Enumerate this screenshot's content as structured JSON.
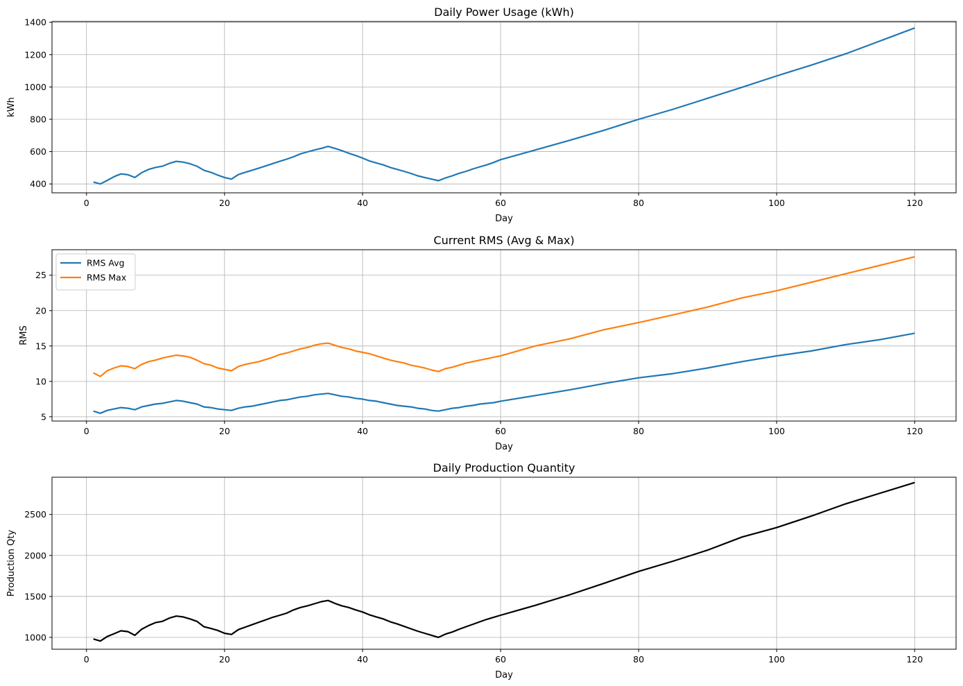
{
  "chart_data": [
    {
      "type": "line",
      "title": "Daily Power Usage (kWh)",
      "xlabel": "Day",
      "ylabel": "kWh",
      "xlim": [
        -5,
        126
      ],
      "ylim": [
        345,
        1405
      ],
      "xticks": [
        0,
        20,
        40,
        60,
        80,
        100,
        120
      ],
      "yticks": [
        400,
        600,
        800,
        1000,
        1200,
        1400
      ],
      "grid": true,
      "legend": null,
      "series": [
        {
          "color": "#1f77b4",
          "x": [
            1,
            2,
            3,
            4,
            5,
            6,
            7,
            8,
            9,
            10,
            11,
            12,
            13,
            14,
            15,
            16,
            17,
            18,
            19,
            20,
            21,
            22,
            23,
            24,
            25,
            26,
            27,
            28,
            29,
            30,
            31,
            32,
            33,
            34,
            35,
            36,
            37,
            38,
            39,
            40,
            41,
            42,
            43,
            44,
            45,
            46,
            47,
            48,
            49,
            50,
            51,
            52,
            53,
            54,
            55,
            56,
            57,
            58,
            59,
            60,
            65,
            70,
            75,
            80,
            85,
            90,
            95,
            100,
            105,
            110,
            115,
            120
          ],
          "values": [
            412,
            400,
            422,
            445,
            462,
            457,
            440,
            470,
            490,
            502,
            510,
            527,
            540,
            535,
            525,
            510,
            485,
            472,
            455,
            440,
            430,
            458,
            472,
            485,
            498,
            512,
            526,
            540,
            553,
            568,
            586,
            598,
            610,
            620,
            632,
            620,
            606,
            590,
            576,
            560,
            542,
            530,
            518,
            502,
            490,
            478,
            465,
            450,
            440,
            430,
            420,
            437,
            450,
            466,
            478,
            493,
            506,
            518,
            533,
            550,
            610,
            670,
            732,
            800,
            862,
            930,
            998,
            1068,
            1135,
            1205,
            1285,
            1365
          ]
        }
      ]
    },
    {
      "type": "line",
      "title": "Current RMS (Avg & Max)",
      "xlabel": "Day",
      "ylabel": "RMS",
      "xlim": [
        -5,
        126
      ],
      "ylim": [
        4.4,
        28.6
      ],
      "xticks": [
        0,
        20,
        40,
        60,
        80,
        100,
        120
      ],
      "yticks": [
        5,
        10,
        15,
        20,
        25
      ],
      "grid": true,
      "legend": "top-left",
      "series": [
        {
          "name": "RMS Avg",
          "color": "#1f77b4",
          "x": [
            1,
            2,
            3,
            4,
            5,
            6,
            7,
            8,
            9,
            10,
            11,
            12,
            13,
            14,
            15,
            16,
            17,
            18,
            19,
            20,
            21,
            22,
            23,
            24,
            25,
            26,
            27,
            28,
            29,
            30,
            31,
            32,
            33,
            34,
            35,
            36,
            37,
            38,
            39,
            40,
            41,
            42,
            43,
            44,
            45,
            46,
            47,
            48,
            49,
            50,
            51,
            52,
            53,
            54,
            55,
            56,
            57,
            58,
            59,
            60,
            65,
            70,
            75,
            80,
            85,
            90,
            95,
            100,
            105,
            110,
            115,
            120
          ],
          "values": [
            5.8,
            5.5,
            5.9,
            6.1,
            6.3,
            6.2,
            6.0,
            6.4,
            6.6,
            6.8,
            6.9,
            7.1,
            7.3,
            7.2,
            7.0,
            6.8,
            6.4,
            6.3,
            6.1,
            6.0,
            5.9,
            6.2,
            6.4,
            6.5,
            6.7,
            6.9,
            7.1,
            7.3,
            7.4,
            7.6,
            7.8,
            7.9,
            8.1,
            8.2,
            8.3,
            8.1,
            7.9,
            7.8,
            7.6,
            7.5,
            7.3,
            7.2,
            7.0,
            6.8,
            6.6,
            6.5,
            6.4,
            6.2,
            6.1,
            5.9,
            5.8,
            6.0,
            6.2,
            6.3,
            6.5,
            6.6,
            6.8,
            6.9,
            7.0,
            7.2,
            8.0,
            8.8,
            9.7,
            10.5,
            11.1,
            11.9,
            12.8,
            13.6,
            14.3,
            15.2,
            15.9,
            16.8
          ]
        },
        {
          "name": "RMS Max",
          "color": "#ff7f0e",
          "x": [
            1,
            2,
            3,
            4,
            5,
            6,
            7,
            8,
            9,
            10,
            11,
            12,
            13,
            14,
            15,
            16,
            17,
            18,
            19,
            20,
            21,
            22,
            23,
            24,
            25,
            26,
            27,
            28,
            29,
            30,
            31,
            32,
            33,
            34,
            35,
            36,
            37,
            38,
            39,
            40,
            41,
            42,
            43,
            44,
            45,
            46,
            47,
            48,
            49,
            50,
            51,
            52,
            53,
            54,
            55,
            56,
            57,
            58,
            59,
            60,
            65,
            70,
            75,
            80,
            85,
            90,
            95,
            100,
            105,
            110,
            115,
            120
          ],
          "values": [
            11.2,
            10.7,
            11.5,
            11.9,
            12.2,
            12.1,
            11.8,
            12.4,
            12.8,
            13.0,
            13.3,
            13.5,
            13.7,
            13.6,
            13.4,
            13.0,
            12.5,
            12.3,
            11.9,
            11.7,
            11.5,
            12.1,
            12.4,
            12.6,
            12.8,
            13.1,
            13.4,
            13.8,
            14.0,
            14.3,
            14.6,
            14.8,
            15.1,
            15.3,
            15.4,
            15.1,
            14.8,
            14.6,
            14.3,
            14.1,
            13.9,
            13.6,
            13.3,
            13.0,
            12.8,
            12.6,
            12.3,
            12.1,
            11.9,
            11.6,
            11.4,
            11.8,
            12.0,
            12.3,
            12.6,
            12.8,
            13.0,
            13.2,
            13.4,
            13.6,
            15.0,
            16.0,
            17.3,
            18.3,
            19.4,
            20.5,
            21.8,
            22.8,
            24.0,
            25.2,
            26.4,
            27.6
          ]
        }
      ]
    },
    {
      "type": "line",
      "title": "Daily Production Quantity",
      "xlabel": "Day",
      "ylabel": "Production Qty",
      "xlim": [
        -5,
        126
      ],
      "ylim": [
        855,
        2955
      ],
      "xticks": [
        0,
        20,
        40,
        60,
        80,
        100,
        120
      ],
      "yticks": [
        1000,
        1500,
        2000,
        2500
      ],
      "grid": true,
      "legend": null,
      "series": [
        {
          "color": "#000000",
          "x": [
            1,
            2,
            3,
            4,
            5,
            6,
            7,
            8,
            9,
            10,
            11,
            12,
            13,
            14,
            15,
            16,
            17,
            18,
            19,
            20,
            21,
            22,
            23,
            24,
            25,
            26,
            27,
            28,
            29,
            30,
            31,
            32,
            33,
            34,
            35,
            36,
            37,
            38,
            39,
            40,
            41,
            42,
            43,
            44,
            45,
            46,
            47,
            48,
            49,
            50,
            51,
            52,
            53,
            54,
            55,
            56,
            57,
            58,
            59,
            60,
            65,
            70,
            75,
            80,
            85,
            90,
            95,
            100,
            105,
            110,
            115,
            120
          ],
          "values": [
            980,
            955,
            1010,
            1045,
            1080,
            1070,
            1025,
            1100,
            1145,
            1180,
            1195,
            1235,
            1260,
            1250,
            1225,
            1195,
            1130,
            1110,
            1085,
            1050,
            1035,
            1095,
            1125,
            1155,
            1185,
            1215,
            1245,
            1270,
            1295,
            1335,
            1365,
            1385,
            1410,
            1435,
            1450,
            1415,
            1385,
            1365,
            1335,
            1310,
            1275,
            1250,
            1225,
            1190,
            1165,
            1135,
            1105,
            1075,
            1050,
            1025,
            1000,
            1040,
            1065,
            1100,
            1130,
            1160,
            1190,
            1220,
            1245,
            1270,
            1390,
            1520,
            1660,
            1805,
            1930,
            2065,
            2225,
            2340,
            2480,
            2630,
            2760,
            2890
          ]
        }
      ]
    }
  ]
}
